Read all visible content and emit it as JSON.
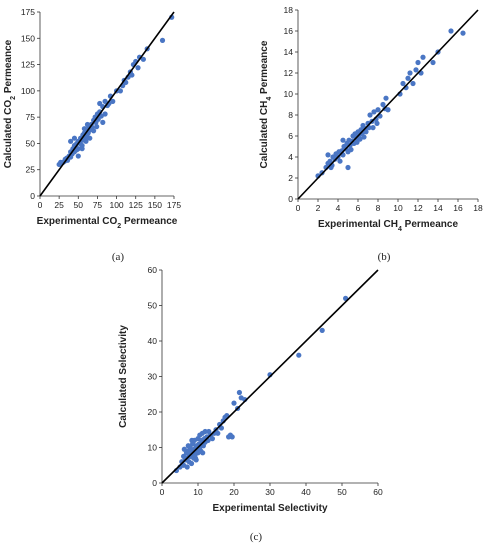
{
  "figure": {
    "panel_labels": [
      "(a)",
      "(b)",
      "(c)"
    ]
  },
  "colors": {
    "points": "#4a76c4",
    "line": "#000000",
    "axis": "#333333"
  },
  "chart_data": [
    {
      "type": "scatter",
      "panel": "(a)",
      "xlabel_parts": [
        "Experimental CO",
        "2",
        " Permeance"
      ],
      "ylabel_parts": [
        "Calculated CO",
        "2",
        " Permeance"
      ],
      "xlim": [
        0,
        175
      ],
      "ylim": [
        0,
        175
      ],
      "xticks": [
        "0",
        "25",
        "50",
        "75",
        "100",
        "125",
        "150",
        "175"
      ],
      "yticks": [
        "0",
        "25",
        "50",
        "75",
        "100",
        "125",
        "150",
        "175"
      ],
      "grid": false,
      "reference_line": [
        [
          0,
          0
        ],
        [
          175,
          175
        ]
      ],
      "points": [
        [
          25,
          30
        ],
        [
          27,
          32
        ],
        [
          30,
          32
        ],
        [
          32,
          33
        ],
        [
          33,
          35
        ],
        [
          35,
          36
        ],
        [
          36,
          34
        ],
        [
          38,
          38
        ],
        [
          40,
          37
        ],
        [
          40,
          42
        ],
        [
          42,
          40
        ],
        [
          43,
          45
        ],
        [
          45,
          42
        ],
        [
          45,
          48
        ],
        [
          47,
          46
        ],
        [
          48,
          50
        ],
        [
          50,
          45
        ],
        [
          50,
          52
        ],
        [
          52,
          50
        ],
        [
          53,
          55
        ],
        [
          55,
          48
        ],
        [
          55,
          53
        ],
        [
          56,
          58
        ],
        [
          57,
          54
        ],
        [
          58,
          60
        ],
        [
          60,
          52
        ],
        [
          60,
          57
        ],
        [
          62,
          62
        ],
        [
          62,
          56
        ],
        [
          63,
          60
        ],
        [
          64,
          66
        ],
        [
          65,
          55
        ],
        [
          65,
          63
        ],
        [
          67,
          68
        ],
        [
          68,
          65
        ],
        [
          70,
          72
        ],
        [
          70,
          62
        ],
        [
          72,
          75
        ],
        [
          73,
          70
        ],
        [
          74,
          66
        ],
        [
          75,
          78
        ],
        [
          76,
          73
        ],
        [
          78,
          80
        ],
        [
          78,
          88
        ],
        [
          80,
          76
        ],
        [
          82,
          85
        ],
        [
          82,
          70
        ],
        [
          85,
          90
        ],
        [
          85,
          78
        ],
        [
          88,
          86
        ],
        [
          90,
          88
        ],
        [
          92,
          95
        ],
        [
          95,
          90
        ],
        [
          40,
          52
        ],
        [
          45,
          55
        ],
        [
          50,
          38
        ],
        [
          55,
          45
        ],
        [
          48,
          44
        ],
        [
          58,
          64
        ],
        [
          62,
          68
        ],
        [
          100,
          100
        ],
        [
          105,
          100
        ],
        [
          108,
          105
        ],
        [
          110,
          110
        ],
        [
          112,
          108
        ],
        [
          115,
          113
        ],
        [
          118,
          118
        ],
        [
          120,
          115
        ],
        [
          122,
          125
        ],
        [
          125,
          128
        ],
        [
          128,
          122
        ],
        [
          130,
          132
        ],
        [
          135,
          130
        ],
        [
          140,
          140
        ],
        [
          160,
          148
        ],
        [
          172,
          170
        ]
      ]
    },
    {
      "type": "scatter",
      "panel": "(b)",
      "xlabel_parts": [
        "Experimental CH",
        "4",
        " Permeance"
      ],
      "ylabel_parts": [
        "Calculated CH",
        "4",
        " Permeance"
      ],
      "xlim": [
        0,
        18
      ],
      "ylim": [
        0,
        18
      ],
      "xticks": [
        "0",
        "2",
        "4",
        "6",
        "8",
        "10",
        "12",
        "14",
        "16",
        "18"
      ],
      "yticks": [
        "0",
        "2",
        "4",
        "6",
        "8",
        "10",
        "12",
        "14",
        "16",
        "18"
      ],
      "grid": false,
      "reference_line": [
        [
          0,
          0
        ],
        [
          18,
          18
        ]
      ],
      "points": [
        [
          2.0,
          2.2
        ],
        [
          2.4,
          2.5
        ],
        [
          2.8,
          3.0
        ],
        [
          3.0,
          3.4
        ],
        [
          3.2,
          3.6
        ],
        [
          3.4,
          3.2
        ],
        [
          3.5,
          4.0
        ],
        [
          3.7,
          3.8
        ],
        [
          3.8,
          4.3
        ],
        [
          4.0,
          4.0
        ],
        [
          4.1,
          4.5
        ],
        [
          4.2,
          3.6
        ],
        [
          4.4,
          4.6
        ],
        [
          4.5,
          4.2
        ],
        [
          4.6,
          5.0
        ],
        [
          4.8,
          4.8
        ],
        [
          4.9,
          5.3
        ],
        [
          5.0,
          4.5
        ],
        [
          5.1,
          5.6
        ],
        [
          5.2,
          5.1
        ],
        [
          5.3,
          4.7
        ],
        [
          5.4,
          5.5
        ],
        [
          5.5,
          6.0
        ],
        [
          5.6,
          5.3
        ],
        [
          5.7,
          6.2
        ],
        [
          5.8,
          5.8
        ],
        [
          5.9,
          5.4
        ],
        [
          6.0,
          6.4
        ],
        [
          6.1,
          6.1
        ],
        [
          6.2,
          5.7
        ],
        [
          6.3,
          6.6
        ],
        [
          6.4,
          6.2
        ],
        [
          6.5,
          7.0
        ],
        [
          6.7,
          6.7
        ],
        [
          6.8,
          6.4
        ],
        [
          7.0,
          7.2
        ],
        [
          7.1,
          6.8
        ],
        [
          7.2,
          8.0
        ],
        [
          7.4,
          7.4
        ],
        [
          7.5,
          6.8
        ],
        [
          7.6,
          8.3
        ],
        [
          7.8,
          7.6
        ],
        [
          8.0,
          8.5
        ],
        [
          8.2,
          7.9
        ],
        [
          8.5,
          9.0
        ],
        [
          8.7,
          8.6
        ],
        [
          9.0,
          8.5
        ],
        [
          8.8,
          9.6
        ],
        [
          5.0,
          3.0
        ],
        [
          4.5,
          5.6
        ],
        [
          10.2,
          10.0
        ],
        [
          10.5,
          11.0
        ],
        [
          10.8,
          10.6
        ],
        [
          11.0,
          11.5
        ],
        [
          11.2,
          12.0
        ],
        [
          11.5,
          11.0
        ],
        [
          11.8,
          12.3
        ],
        [
          12.0,
          13.0
        ],
        [
          12.3,
          12.0
        ],
        [
          12.5,
          13.5
        ],
        [
          13.5,
          13.0
        ],
        [
          14.0,
          14.0
        ],
        [
          15.3,
          16.0
        ],
        [
          16.5,
          15.8
        ],
        [
          3.0,
          4.2
        ],
        [
          3.3,
          3.0
        ],
        [
          6.6,
          5.9
        ],
        [
          7.9,
          7.2
        ]
      ]
    },
    {
      "type": "scatter",
      "panel": "(c)",
      "xlabel_parts": [
        "Experimental Selectivity",
        "",
        ""
      ],
      "ylabel_parts": [
        "Calculated Selectivity",
        "",
        ""
      ],
      "xlim": [
        0,
        60
      ],
      "ylim": [
        0,
        60
      ],
      "xticks": [
        "0",
        "10",
        "20",
        "30",
        "40",
        "50",
        "60"
      ],
      "yticks": [
        "0",
        "10",
        "20",
        "30",
        "40",
        "50",
        "60"
      ],
      "grid": false,
      "reference_line": [
        [
          0,
          0
        ],
        [
          60,
          60
        ]
      ],
      "points": [
        [
          4.0,
          3.5
        ],
        [
          5.0,
          4.5
        ],
        [
          5.5,
          6.0
        ],
        [
          6.0,
          5.0
        ],
        [
          6.0,
          7.5
        ],
        [
          6.5,
          6.5
        ],
        [
          6.8,
          8.5
        ],
        [
          7.0,
          4.5
        ],
        [
          7.0,
          7.0
        ],
        [
          7.2,
          9.0
        ],
        [
          7.5,
          8.0
        ],
        [
          7.5,
          6.0
        ],
        [
          7.8,
          10.0
        ],
        [
          8.0,
          7.5
        ],
        [
          8.0,
          9.5
        ],
        [
          8.2,
          5.5
        ],
        [
          8.5,
          8.5
        ],
        [
          8.5,
          11.0
        ],
        [
          8.8,
          7.0
        ],
        [
          9.0,
          9.5
        ],
        [
          9.0,
          12.0
        ],
        [
          9.2,
          8.0
        ],
        [
          9.5,
          10.5
        ],
        [
          9.5,
          6.5
        ],
        [
          9.8,
          9.0
        ],
        [
          10.0,
          12.5
        ],
        [
          10.0,
          8.5
        ],
        [
          10.3,
          11.0
        ],
        [
          10.5,
          10.0
        ],
        [
          10.5,
          13.5
        ],
        [
          10.8,
          9.0
        ],
        [
          11.0,
          12.0
        ],
        [
          11.0,
          11.0
        ],
        [
          11.2,
          14.0
        ],
        [
          11.5,
          10.5
        ],
        [
          11.8,
          12.5
        ],
        [
          12.0,
          11.5
        ],
        [
          12.0,
          14.5
        ],
        [
          12.5,
          13.0
        ],
        [
          12.8,
          12.0
        ],
        [
          13.0,
          14.5
        ],
        [
          13.5,
          13.5
        ],
        [
          14.0,
          12.5
        ],
        [
          14.5,
          14.0
        ],
        [
          15.0,
          15.0
        ],
        [
          15.5,
          14.0
        ],
        [
          16.0,
          16.5
        ],
        [
          16.5,
          15.5
        ],
        [
          17.0,
          17.5
        ],
        [
          17.5,
          18.5
        ],
        [
          18.0,
          19.0
        ],
        [
          18.5,
          13.0
        ],
        [
          19.0,
          13.5
        ],
        [
          19.5,
          13.0
        ],
        [
          20.0,
          22.5
        ],
        [
          21.0,
          21.0
        ],
        [
          21.5,
          25.5
        ],
        [
          22.0,
          24.0
        ],
        [
          23.0,
          23.5
        ],
        [
          30.0,
          30.5
        ],
        [
          38.0,
          36.0
        ],
        [
          44.5,
          43.0
        ],
        [
          51.0,
          52.0
        ],
        [
          6.2,
          9.5
        ],
        [
          7.3,
          10.5
        ],
        [
          8.3,
          12.0
        ],
        [
          9.3,
          7.0
        ],
        [
          11.3,
          8.5
        ]
      ]
    }
  ]
}
